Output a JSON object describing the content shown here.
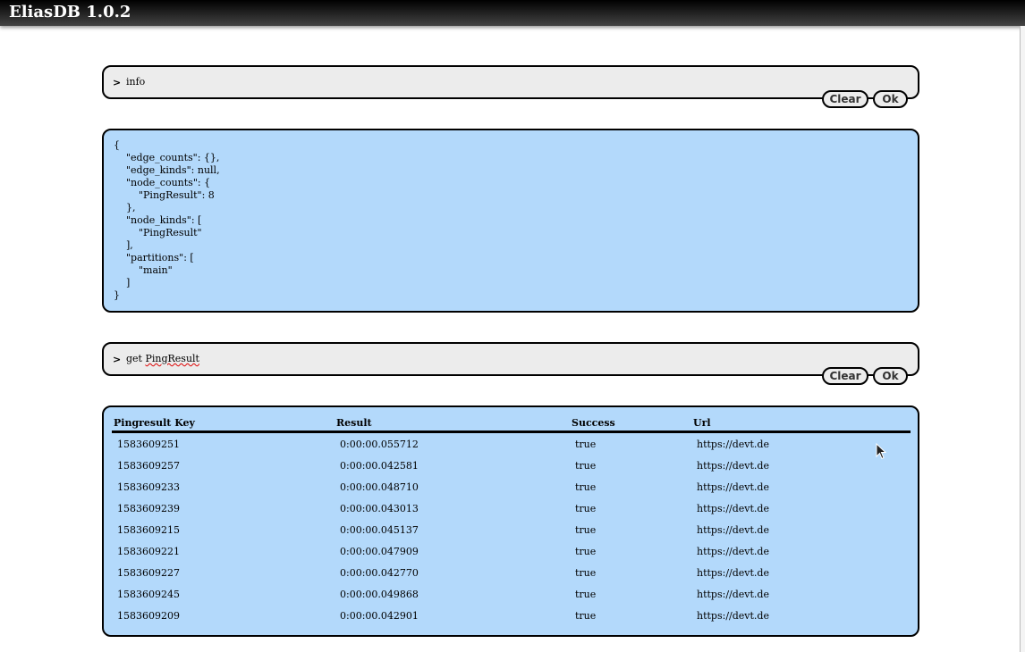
{
  "app": {
    "title": "EliasDB 1.0.2"
  },
  "console": {
    "clear_label": "Clear",
    "ok_label": "Ok",
    "prompt_symbol": ">",
    "entries": [
      {
        "command": "info",
        "output": "{\n    \"edge_counts\": {},\n    \"edge_kinds\": null,\n    \"node_counts\": {\n        \"PingResult\": 8\n    },\n    \"node_kinds\": [\n        \"PingResult\"\n    ],\n    \"partitions\": [\n        \"main\"\n    ]\n}"
      },
      {
        "command_prefix": "get ",
        "command_word": "PingResult"
      }
    ]
  },
  "table": {
    "headers": [
      "Pingresult Key",
      "Result",
      "Success",
      "Url"
    ],
    "rows": [
      [
        "1583609251",
        "0:00:00.055712",
        "true",
        "https://devt.de"
      ],
      [
        "1583609257",
        "0:00:00.042581",
        "true",
        "https://devt.de"
      ],
      [
        "1583609233",
        "0:00:00.048710",
        "true",
        "https://devt.de"
      ],
      [
        "1583609239",
        "0:00:00.043013",
        "true",
        "https://devt.de"
      ],
      [
        "1583609215",
        "0:00:00.045137",
        "true",
        "https://devt.de"
      ],
      [
        "1583609221",
        "0:00:00.047909",
        "true",
        "https://devt.de"
      ],
      [
        "1583609227",
        "0:00:00.042770",
        "true",
        "https://devt.de"
      ],
      [
        "1583609245",
        "0:00:00.049868",
        "true",
        "https://devt.de"
      ],
      [
        "1583609209",
        "0:00:00.042901",
        "true",
        "https://devt.de"
      ]
    ]
  }
}
